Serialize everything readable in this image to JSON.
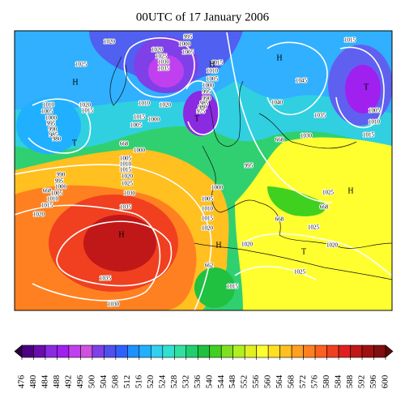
{
  "title": "00UTC of 17 January 2006",
  "pressure_labels": [
    "1020",
    "995",
    "1000",
    "1005",
    "1020",
    "1025",
    "1030",
    "1035",
    "1015",
    "1025",
    "1015",
    "1010",
    "1005",
    "1000",
    "995",
    "990",
    "985",
    "980",
    "975",
    "1045",
    "1040",
    "1035",
    "1030",
    "1010",
    "1005",
    "1000",
    "995",
    "990",
    "985",
    "980",
    "1015",
    "1020",
    "1010",
    "1015",
    "1005",
    "1000",
    "1020",
    "668",
    "1000",
    "1005",
    "1010",
    "1015",
    "1020",
    "1025",
    "1030",
    "1035",
    "990",
    "995",
    "1000",
    "668",
    "1005",
    "1010",
    "1015",
    "1020",
    "995",
    "1000",
    "1005",
    "1010",
    "1015",
    "1020",
    "668",
    "1025",
    "668",
    "668",
    "1025",
    "1020",
    "1020",
    "1025",
    "662",
    "1015",
    "1035",
    "1030",
    "1005",
    "1010",
    "1015"
  ],
  "centers": [
    "H",
    "H",
    "T",
    "H",
    "T",
    "T",
    "H",
    "H",
    "T",
    "H"
  ],
  "colorbar": {
    "levels": [
      476,
      480,
      484,
      488,
      492,
      496,
      500,
      504,
      508,
      512,
      516,
      520,
      524,
      528,
      532,
      536,
      540,
      544,
      548,
      552,
      556,
      560,
      564,
      568,
      572,
      576,
      580,
      584,
      588,
      592,
      596,
      600
    ],
    "colors": [
      "#2a0040",
      "#4b0082",
      "#6a0dad",
      "#8a2be2",
      "#a020f0",
      "#c040f0",
      "#d050e0",
      "#8040e8",
      "#5050f0",
      "#3060ff",
      "#1e90ff",
      "#20b0ff",
      "#30d0f0",
      "#30e0d0",
      "#30e0a0",
      "#20d070",
      "#20c040",
      "#40d020",
      "#80e020",
      "#b0f020",
      "#e0f020",
      "#ffff30",
      "#ffe020",
      "#ffc020",
      "#ffa020",
      "#ff8020",
      "#ff6020",
      "#f04020",
      "#e02020",
      "#c01818",
      "#a01010",
      "#801010",
      "#600808"
    ]
  }
}
